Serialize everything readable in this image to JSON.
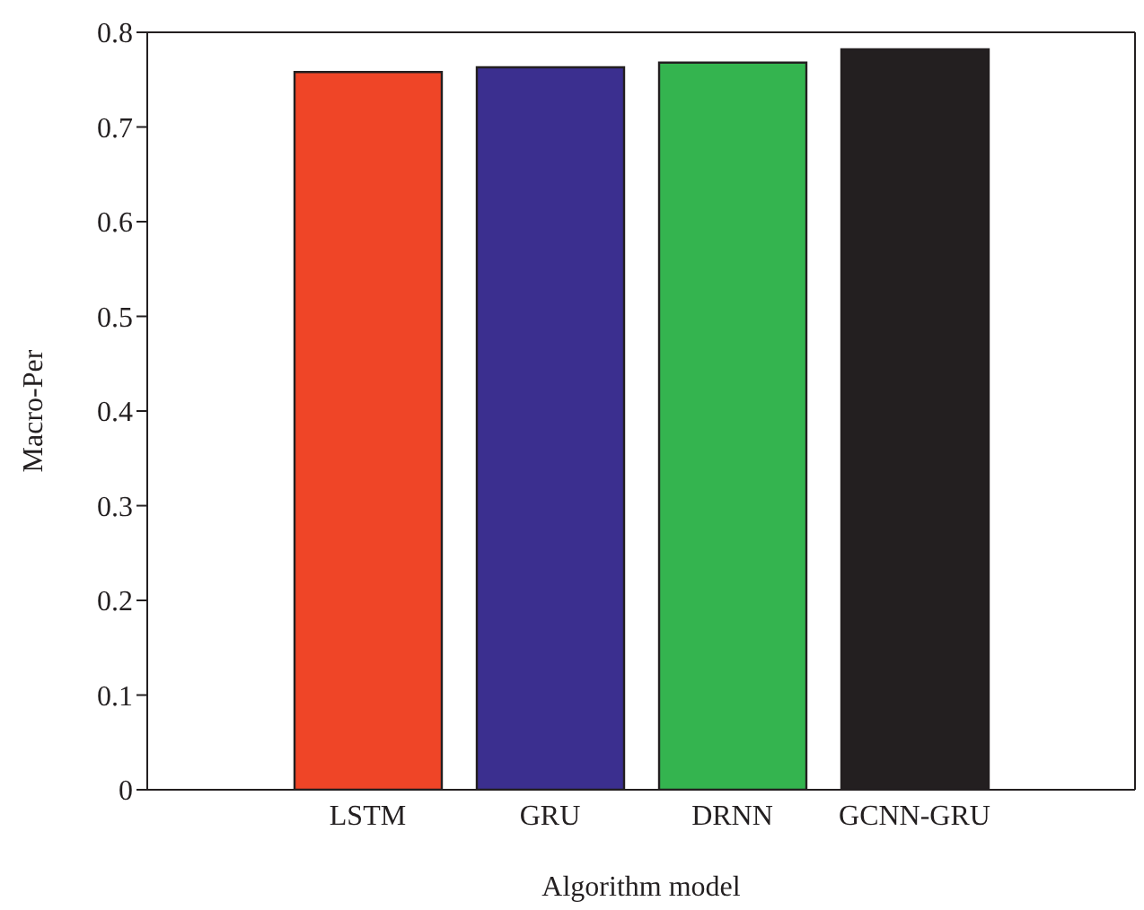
{
  "chart_data": {
    "type": "bar",
    "xlabel": "Algorithm model",
    "ylabel": "Macro-Per",
    "categories": [
      "LSTM",
      "GRU",
      "DRNN",
      "GCNN-GRU"
    ],
    "values": [
      0.758,
      0.763,
      0.768,
      0.782
    ],
    "colors": [
      "#ef4527",
      "#3b2f8f",
      "#34b44f",
      "#231f20"
    ],
    "ylim": [
      0,
      0.8
    ],
    "yticks": [
      0,
      0.1,
      0.2,
      0.3,
      0.4,
      0.5,
      0.6,
      0.7,
      0.8
    ],
    "grid": false,
    "legend": false
  }
}
